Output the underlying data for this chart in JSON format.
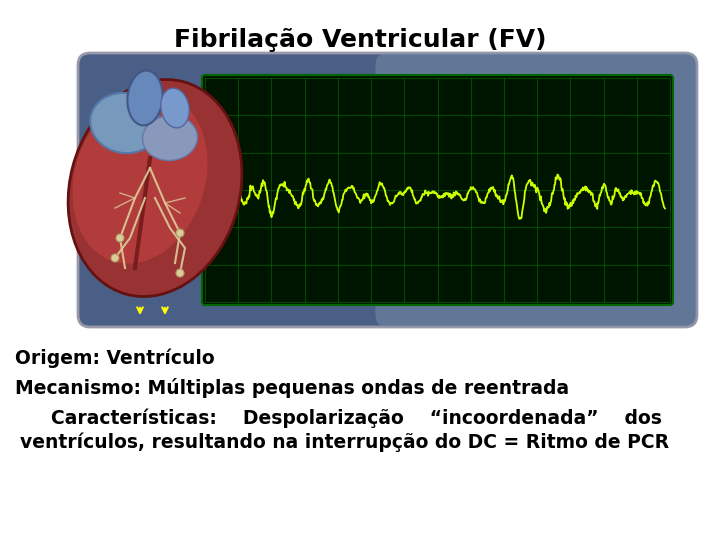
{
  "title": "Fibrilação Ventricular (FV)",
  "title_fontsize": 18,
  "title_fontweight": "bold",
  "bg_color": "#ffffff",
  "text_color": "#000000",
  "line1": "Origem: Ventrículo",
  "line2": "Mecanismo: Múltiplas pequenas ondas de reentrada",
  "line3a": "    Características:    Despolarização    “incoordenada”    dos",
  "line3b": "ventrículos, resultando na interrupção do DC = Ritmo de PCR",
  "text_fontsize": 13.5,
  "ecg_color": "#ccff00",
  "grid_color": "#004400",
  "grid_line_color": "#006600",
  "monitor_bg": "#001500",
  "monitor_outer_left": "#3a4a6a",
  "monitor_outer_right": "#8899bb",
  "monitor_border": "#aaaaaa",
  "arrow_color": "#ffff00"
}
